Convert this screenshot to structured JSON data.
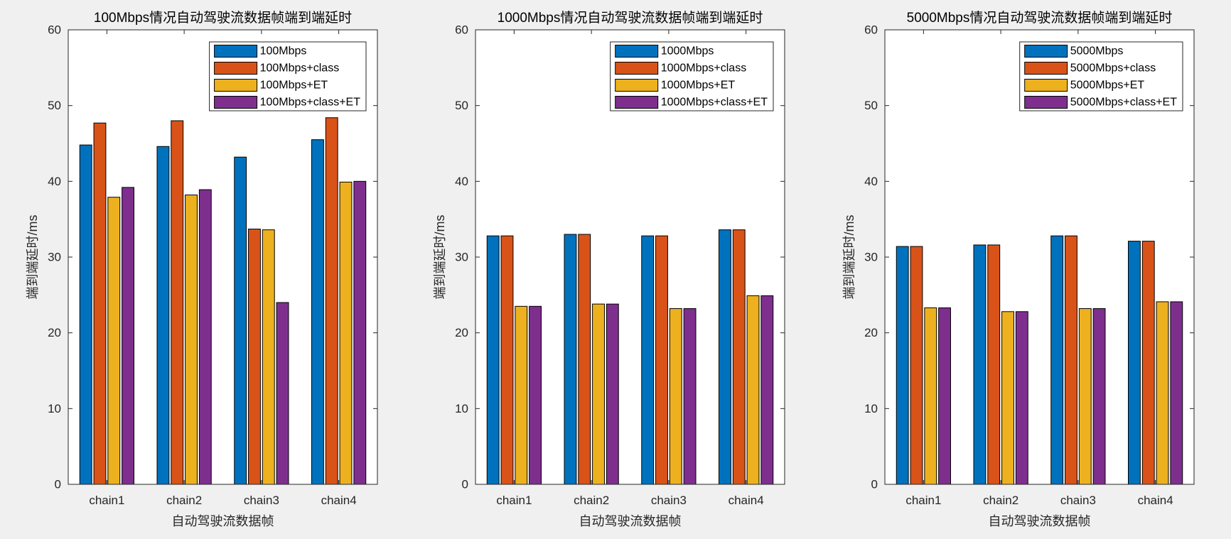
{
  "figure": {
    "background": "#f0f0f0",
    "axes_color": "#262626"
  },
  "chart_data": [
    {
      "type": "bar",
      "title": "100Mbps情况自动驾驶流数据帧端到端延时",
      "xlabel": "自动驾驶流数据帧",
      "ylabel": "端到端延时/ms",
      "categories": [
        "chain1",
        "chain2",
        "chain3",
        "chain4"
      ],
      "ylim": [
        0,
        60
      ],
      "yticks": [
        0,
        10,
        20,
        30,
        40,
        50,
        60
      ],
      "grid": false,
      "legend": "top-right",
      "series": [
        {
          "name": "100Mbps",
          "color": "#0072BD",
          "values": [
            44.8,
            44.6,
            43.2,
            45.5
          ]
        },
        {
          "name": "100Mbps+class",
          "color": "#D95319",
          "values": [
            47.7,
            48.0,
            33.7,
            48.4
          ]
        },
        {
          "name": "100Mbps+ET",
          "color": "#EDB120",
          "values": [
            37.9,
            38.2,
            33.6,
            39.9
          ]
        },
        {
          "name": "100Mbps+class+ET",
          "color": "#7E2F8E",
          "values": [
            39.2,
            38.9,
            24.0,
            40.0
          ]
        }
      ]
    },
    {
      "type": "bar",
      "title": "1000Mbps情况自动驾驶流数据帧端到端延时",
      "xlabel": "自动驾驶流数据帧",
      "ylabel": "端到端延时/ms",
      "categories": [
        "chain1",
        "chain2",
        "chain3",
        "chain4"
      ],
      "ylim": [
        0,
        60
      ],
      "yticks": [
        0,
        10,
        20,
        30,
        40,
        50,
        60
      ],
      "grid": false,
      "legend": "top-right",
      "series": [
        {
          "name": "1000Mbps",
          "color": "#0072BD",
          "values": [
            32.8,
            33.0,
            32.8,
            33.6
          ]
        },
        {
          "name": "1000Mbps+class",
          "color": "#D95319",
          "values": [
            32.8,
            33.0,
            32.8,
            33.6
          ]
        },
        {
          "name": "1000Mbps+ET",
          "color": "#EDB120",
          "values": [
            23.5,
            23.8,
            23.2,
            24.9
          ]
        },
        {
          "name": "1000Mbps+class+ET",
          "color": "#7E2F8E",
          "values": [
            23.5,
            23.8,
            23.2,
            24.9
          ]
        }
      ]
    },
    {
      "type": "bar",
      "title": "5000Mbps情况自动驾驶流数据帧端到端延时",
      "xlabel": "自动驾驶流数据帧",
      "ylabel": "端到端延时/ms",
      "categories": [
        "chain1",
        "chain2",
        "chain3",
        "chain4"
      ],
      "ylim": [
        0,
        60
      ],
      "yticks": [
        0,
        10,
        20,
        30,
        40,
        50,
        60
      ],
      "grid": false,
      "legend": "top-right",
      "series": [
        {
          "name": "5000Mbps",
          "color": "#0072BD",
          "values": [
            31.4,
            31.6,
            32.8,
            32.1
          ]
        },
        {
          "name": "5000Mbps+class",
          "color": "#D95319",
          "values": [
            31.4,
            31.6,
            32.8,
            32.1
          ]
        },
        {
          "name": "5000Mbps+ET",
          "color": "#EDB120",
          "values": [
            23.3,
            22.8,
            23.2,
            24.1
          ]
        },
        {
          "name": "5000Mbps+class+ET",
          "color": "#7E2F8E",
          "values": [
            23.3,
            22.8,
            23.2,
            24.1
          ]
        }
      ]
    }
  ]
}
